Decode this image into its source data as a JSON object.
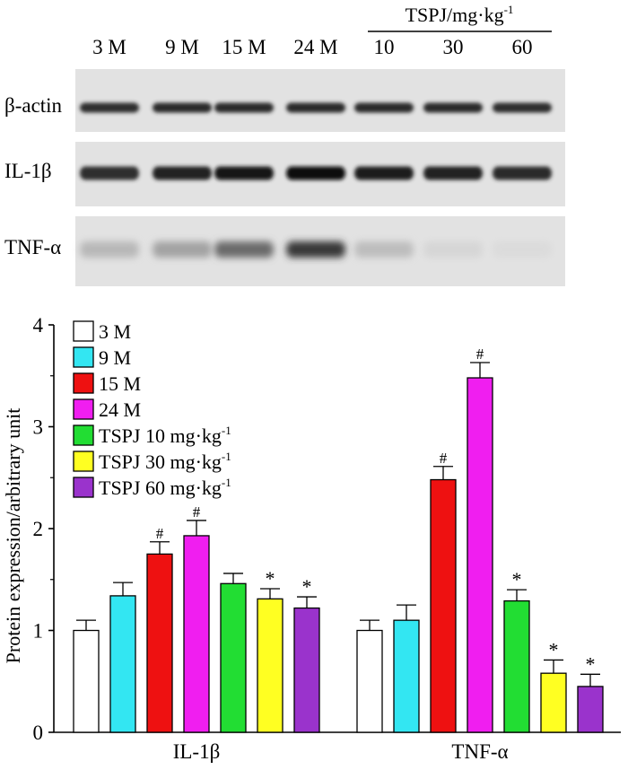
{
  "blot": {
    "lane_labels": [
      "3 M",
      "9 M",
      "15 M",
      "24 M",
      "10",
      "30",
      "60"
    ],
    "treatment_header": "TSPJ/mg·kg",
    "treatment_header_sup": "-1",
    "rows": [
      {
        "label": "β-actin",
        "intensity": [
          0.82,
          0.84,
          0.84,
          0.84,
          0.84,
          0.84,
          0.82
        ]
      },
      {
        "label": "IL-1β",
        "intensity": [
          0.82,
          0.86,
          0.9,
          0.96,
          0.88,
          0.86,
          0.84
        ]
      },
      {
        "label": "TNF-α",
        "intensity": [
          0.28,
          0.36,
          0.58,
          0.78,
          0.26,
          0.16,
          0.14
        ]
      }
    ]
  },
  "chart_data": {
    "type": "bar",
    "title": "",
    "xlabel": "",
    "ylabel": "Protein expression/arbitrary unit",
    "ylim": [
      0,
      4
    ],
    "yticks": [
      0,
      1,
      2,
      3,
      4
    ],
    "categories": [
      "IL-1β",
      "TNF-α"
    ],
    "legend_position": "top-left",
    "series": [
      {
        "name": "3 M",
        "legend_name": "3 M",
        "legend_sup": "",
        "color": "#ffffff",
        "values": [
          1.0,
          1.0
        ],
        "errors": [
          0.1,
          0.1
        ],
        "marks": [
          "",
          ""
        ]
      },
      {
        "name": "9 M",
        "legend_name": "9 M",
        "legend_sup": "",
        "color": "#33e6f2",
        "values": [
          1.34,
          1.1
        ],
        "errors": [
          0.13,
          0.15
        ],
        "marks": [
          "",
          ""
        ]
      },
      {
        "name": "15 M",
        "legend_name": "15 M",
        "legend_sup": "",
        "color": "#ee1111",
        "values": [
          1.75,
          2.48
        ],
        "errors": [
          0.12,
          0.13
        ],
        "marks": [
          "#",
          "#"
        ]
      },
      {
        "name": "24 M",
        "legend_name": "24 M",
        "legend_sup": "",
        "color": "#f01ef0",
        "values": [
          1.93,
          3.48
        ],
        "errors": [
          0.15,
          0.15
        ],
        "marks": [
          "#",
          "#"
        ]
      },
      {
        "name": "TSPJ 10 mg·kg-1",
        "legend_name": "TSPJ 10 mg·kg",
        "legend_sup": "-1",
        "color": "#22dd33",
        "values": [
          1.46,
          1.29
        ],
        "errors": [
          0.1,
          0.11
        ],
        "marks": [
          "",
          "*"
        ]
      },
      {
        "name": "TSPJ 30 mg·kg-1",
        "legend_name": "TSPJ 30 mg·kg",
        "legend_sup": "-1",
        "color": "#ffff22",
        "values": [
          1.31,
          0.58
        ],
        "errors": [
          0.1,
          0.13
        ],
        "marks": [
          "*",
          "*"
        ]
      },
      {
        "name": "TSPJ 60 mg·kg-1",
        "legend_name": "TSPJ 60 mg·kg",
        "legend_sup": "-1",
        "color": "#9a33cc",
        "values": [
          1.22,
          0.45
        ],
        "errors": [
          0.11,
          0.12
        ],
        "marks": [
          "*",
          "*"
        ]
      }
    ]
  }
}
